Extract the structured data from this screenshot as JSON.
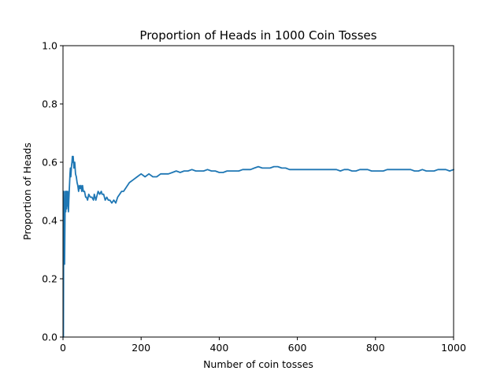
{
  "chart_data": {
    "type": "line",
    "title": "Proportion of Heads in 1000 Coin Tosses",
    "xlabel": "Number of coin tosses",
    "ylabel": "Proportion of Heads",
    "xlim": [
      0,
      1000
    ],
    "ylim": [
      0,
      1.0
    ],
    "x_ticks": [
      "0",
      "200",
      "400",
      "600",
      "800",
      "1000"
    ],
    "y_ticks": [
      "0.0",
      "0.2",
      "0.4",
      "0.6",
      "0.8",
      "1.0"
    ],
    "grid": false,
    "legend": "none",
    "series": [
      {
        "color": "#1f77b4",
        "x": [
          1,
          2,
          3,
          4,
          5,
          6,
          7,
          8,
          9,
          10,
          11,
          12,
          13,
          14,
          15,
          16,
          17,
          18,
          19,
          20,
          21,
          22,
          23,
          24,
          25,
          26,
          28,
          30,
          32,
          34,
          36,
          38,
          40,
          42,
          44,
          46,
          48,
          50,
          52,
          55,
          58,
          60,
          63,
          66,
          70,
          74,
          78,
          80,
          84,
          88,
          90,
          94,
          98,
          100,
          104,
          108,
          112,
          116,
          120,
          125,
          130,
          135,
          140,
          145,
          150,
          155,
          160,
          170,
          180,
          190,
          200,
          210,
          220,
          230,
          240,
          250,
          260,
          270,
          280,
          290,
          300,
          310,
          320,
          330,
          340,
          350,
          360,
          370,
          380,
          390,
          400,
          410,
          420,
          430,
          440,
          450,
          460,
          470,
          480,
          490,
          500,
          510,
          520,
          530,
          540,
          550,
          560,
          570,
          580,
          590,
          600,
          610,
          620,
          630,
          640,
          650,
          660,
          670,
          680,
          690,
          700,
          710,
          720,
          730,
          740,
          750,
          760,
          770,
          780,
          790,
          800,
          810,
          820,
          830,
          840,
          850,
          860,
          870,
          880,
          890,
          900,
          910,
          920,
          930,
          940,
          950,
          960,
          970,
          980,
          990,
          1000
        ],
        "values": [
          0.0,
          0.5,
          0.33,
          0.25,
          0.4,
          0.5,
          0.43,
          0.5,
          0.44,
          0.5,
          0.45,
          0.5,
          0.46,
          0.43,
          0.47,
          0.5,
          0.53,
          0.56,
          0.58,
          0.55,
          0.57,
          0.59,
          0.6,
          0.62,
          0.6,
          0.62,
          0.58,
          0.6,
          0.56,
          0.55,
          0.53,
          0.52,
          0.5,
          0.52,
          0.51,
          0.52,
          0.5,
          0.52,
          0.5,
          0.5,
          0.48,
          0.48,
          0.47,
          0.49,
          0.48,
          0.48,
          0.47,
          0.49,
          0.47,
          0.49,
          0.5,
          0.49,
          0.5,
          0.49,
          0.49,
          0.47,
          0.48,
          0.47,
          0.47,
          0.46,
          0.47,
          0.46,
          0.48,
          0.49,
          0.5,
          0.5,
          0.51,
          0.53,
          0.54,
          0.55,
          0.56,
          0.55,
          0.56,
          0.55,
          0.55,
          0.56,
          0.56,
          0.56,
          0.565,
          0.57,
          0.565,
          0.57,
          0.57,
          0.575,
          0.57,
          0.57,
          0.57,
          0.575,
          0.57,
          0.57,
          0.565,
          0.565,
          0.57,
          0.57,
          0.57,
          0.57,
          0.575,
          0.575,
          0.575,
          0.58,
          0.585,
          0.58,
          0.58,
          0.58,
          0.585,
          0.585,
          0.58,
          0.58,
          0.575,
          0.575,
          0.575,
          0.575,
          0.575,
          0.575,
          0.575,
          0.575,
          0.575,
          0.575,
          0.575,
          0.575,
          0.575,
          0.57,
          0.575,
          0.575,
          0.57,
          0.57,
          0.575,
          0.575,
          0.575,
          0.57,
          0.57,
          0.57,
          0.57,
          0.575,
          0.575,
          0.575,
          0.575,
          0.575,
          0.575,
          0.575,
          0.57,
          0.57,
          0.575,
          0.57,
          0.57,
          0.57,
          0.575,
          0.575,
          0.575,
          0.57,
          0.575
        ]
      }
    ]
  }
}
